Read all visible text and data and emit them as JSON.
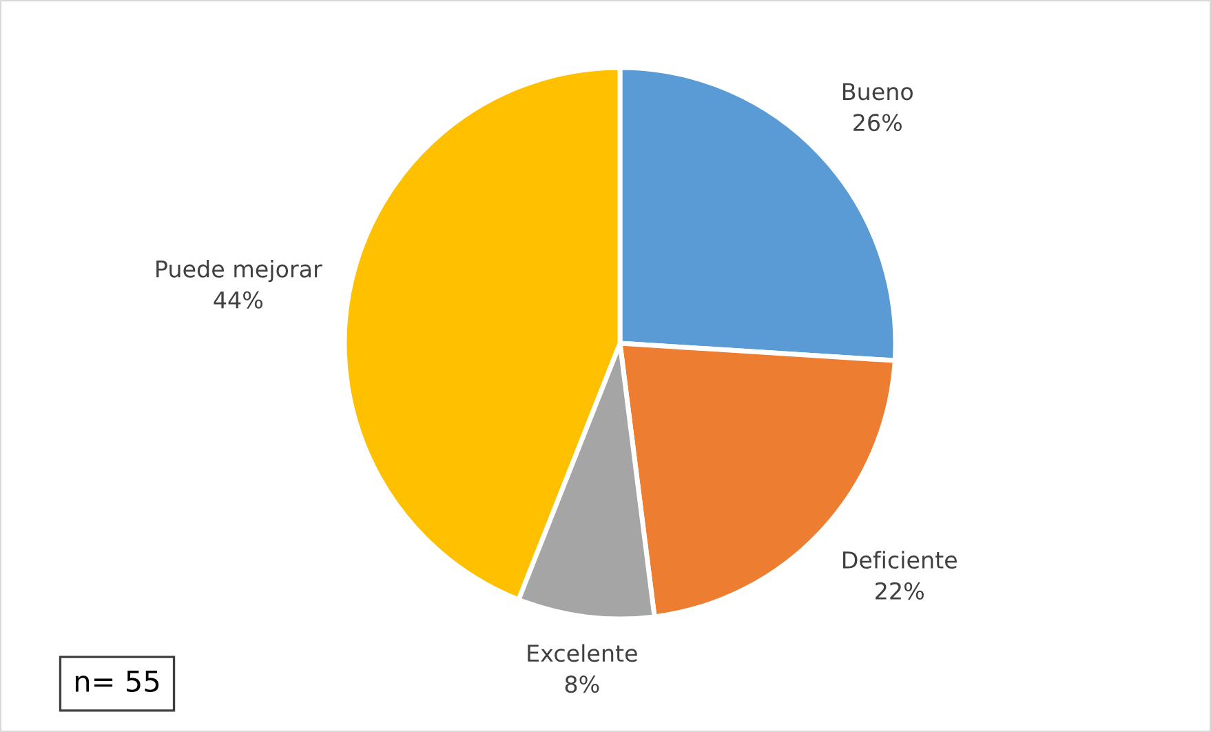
{
  "chart_data": {
    "type": "pie",
    "categories": [
      "Bueno",
      "Deficiente",
      "Excelente",
      "Puede mejorar"
    ],
    "values": [
      26,
      22,
      8,
      44
    ],
    "colors": [
      "#5b9bd5",
      "#ed7d31",
      "#a5a5a5",
      "#ffc000"
    ],
    "value_labels": [
      "26%",
      "22%",
      "8%",
      "44%"
    ],
    "annotations": [
      "n= 55"
    ]
  }
}
